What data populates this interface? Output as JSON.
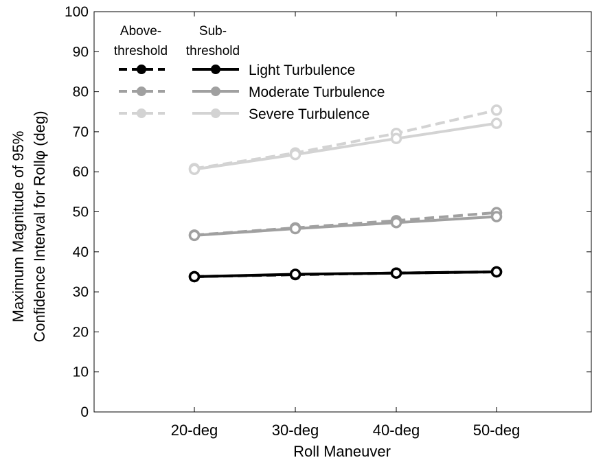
{
  "chart_data": {
    "type": "line",
    "xlabel": "Roll Maneuver",
    "ylabel_line1": "Maximum Magnitude of 95%",
    "ylabel_line2": "Confidence Interval for Rollφ (deg)",
    "categories": [
      "20-deg",
      "30-deg",
      "40-deg",
      "50-deg"
    ],
    "ylim": [
      0,
      100
    ],
    "yticks": [
      0,
      10,
      20,
      30,
      40,
      50,
      60,
      70,
      80,
      90,
      100
    ],
    "legend": {
      "placement": "top-left",
      "header_above": [
        "Above-",
        "threshold"
      ],
      "header_sub": [
        "Sub-",
        "threshold"
      ],
      "entries": [
        "Light Turbulence",
        "Moderate Turbulence",
        "Severe Turbulence"
      ]
    },
    "series": [
      {
        "group": "Light Turbulence",
        "kind": "above-threshold",
        "style": "dashed",
        "color": "#000000",
        "values": [
          33.8,
          34.3,
          34.7,
          35.0
        ]
      },
      {
        "group": "Light Turbulence",
        "kind": "sub-threshold",
        "style": "solid",
        "color": "#000000",
        "values": [
          33.8,
          34.4,
          34.7,
          35.0
        ]
      },
      {
        "group": "Moderate Turbulence",
        "kind": "above-threshold",
        "style": "dashed",
        "color": "#a0a0a0",
        "values": [
          44.2,
          46.0,
          47.8,
          49.8
        ]
      },
      {
        "group": "Moderate Turbulence",
        "kind": "sub-threshold",
        "style": "solid",
        "color": "#a0a0a0",
        "values": [
          44.1,
          45.8,
          47.3,
          48.8
        ]
      },
      {
        "group": "Severe Turbulence",
        "kind": "above-threshold",
        "style": "dashed",
        "color": "#d3d3d3",
        "values": [
          60.8,
          64.7,
          69.6,
          75.4
        ]
      },
      {
        "group": "Severe Turbulence",
        "kind": "sub-threshold",
        "style": "solid",
        "color": "#d3d3d3",
        "values": [
          60.6,
          64.3,
          68.3,
          72.1
        ]
      }
    ]
  }
}
